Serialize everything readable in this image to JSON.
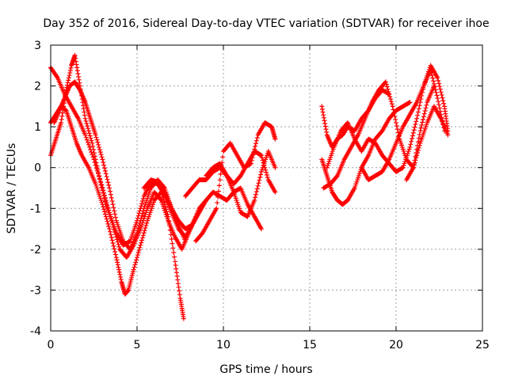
{
  "chart_data": {
    "type": "scatter",
    "title": "Day 352 of 2016, Sidereal Day-to-day VTEC variation (SDTVAR) for receiver ihoe",
    "xlabel": "GPS time / hours",
    "ylabel": "SDTVAR / TECUs",
    "xlim": [
      0,
      25
    ],
    "ylim": [
      -4,
      3
    ],
    "x_ticks": [
      "0",
      "5",
      "10",
      "15",
      "20",
      "25"
    ],
    "y_ticks": [
      "-4",
      "-3",
      "-2",
      "-1",
      "0",
      "1",
      "2",
      "3"
    ],
    "grid": true,
    "marker": "+",
    "marker_color": "#ff0000",
    "series": [
      {
        "x": [
          0.0,
          0.4,
          0.8,
          1.2,
          1.6,
          2.0,
          2.5,
          3.0,
          3.4,
          3.8,
          4.2,
          4.6,
          5.0,
          5.4,
          5.8,
          6.2,
          6.6,
          7.0,
          7.4,
          7.8,
          8.2,
          8.6,
          9.0
        ],
        "y": [
          2.45,
          2.2,
          1.8,
          1.5,
          1.2,
          0.8,
          0.2,
          -0.5,
          -1.1,
          -1.6,
          -1.9,
          -1.8,
          -1.3,
          -0.7,
          -0.35,
          -0.4,
          -0.7,
          -1.1,
          -1.5,
          -1.7,
          -1.4,
          -1.0,
          -0.8
        ]
      },
      {
        "x": [
          0.0,
          0.3,
          0.6,
          0.9,
          1.2,
          1.5,
          1.8,
          2.2,
          2.6,
          3.0,
          3.4,
          3.8,
          4.1,
          4.3,
          4.5,
          4.8,
          5.2,
          5.6,
          6.0,
          6.4,
          6.8,
          7.2,
          7.5,
          7.7
        ],
        "y": [
          1.1,
          1.3,
          1.5,
          1.4,
          1.0,
          0.6,
          0.3,
          0.0,
          -0.4,
          -0.9,
          -1.5,
          -2.2,
          -2.8,
          -3.1,
          -3.0,
          -2.5,
          -1.9,
          -1.3,
          -0.8,
          -0.6,
          -1.2,
          -2.3,
          -3.2,
          -3.7
        ]
      },
      {
        "x": [
          0.0,
          0.3,
          0.6,
          0.9,
          1.2,
          1.4,
          1.7,
          2.0,
          2.4,
          2.8,
          3.2,
          3.6,
          4.0,
          4.4,
          4.8,
          5.2,
          5.6,
          6.0,
          6.4,
          6.8,
          7.2,
          7.6,
          8.0,
          8.4
        ],
        "y": [
          0.3,
          0.7,
          1.1,
          1.9,
          2.5,
          2.75,
          2.0,
          1.2,
          0.6,
          -0.2,
          -0.9,
          -1.4,
          -2.0,
          -2.2,
          -1.9,
          -1.5,
          -1.0,
          -0.6,
          -0.8,
          -1.3,
          -1.7,
          -2.0,
          -1.6,
          -1.2
        ]
      },
      {
        "x": [
          0.2,
          0.5,
          0.8,
          1.1,
          1.4,
          1.7,
          2.0,
          2.3,
          2.6,
          3.0,
          3.4,
          3.8,
          4.2,
          4.6,
          5.0,
          5.4,
          5.8,
          6.2,
          6.6,
          7.0,
          7.4,
          7.8
        ],
        "y": [
          1.1,
          1.4,
          1.7,
          2.0,
          2.1,
          1.9,
          1.6,
          1.2,
          0.8,
          0.2,
          -0.5,
          -1.3,
          -1.8,
          -2.0,
          -1.6,
          -1.0,
          -0.5,
          -0.3,
          -0.5,
          -1.0,
          -1.4,
          -1.8
        ]
      },
      {
        "x": [
          5.4,
          5.8,
          6.2,
          6.6,
          7.0,
          7.4,
          7.8,
          8.2,
          8.6,
          9.0,
          9.4,
          9.8,
          10.2,
          10.6,
          11.0,
          11.4,
          11.8,
          12.2
        ],
        "y": [
          -0.5,
          -0.3,
          -0.35,
          -0.6,
          -1.0,
          -1.3,
          -1.5,
          -1.4,
          -1.1,
          -0.8,
          -0.6,
          -0.7,
          -0.8,
          -0.6,
          -0.5,
          -0.9,
          -1.2,
          -1.5
        ]
      },
      {
        "x": [
          7.8,
          8.2,
          8.6,
          9.0,
          9.4,
          9.8,
          10.2,
          10.6,
          11.0,
          11.4,
          11.8,
          12.2,
          12.6,
          13.0
        ],
        "y": [
          -0.7,
          -0.5,
          -0.3,
          -0.3,
          -0.1,
          0.0,
          -0.2,
          -0.4,
          -0.2,
          0.1,
          0.4,
          0.3,
          -0.3,
          -0.6
        ]
      },
      {
        "x": [
          8.4,
          8.8,
          9.2,
          9.6,
          10.0,
          10.4,
          10.8,
          11.2,
          11.6,
          12.0,
          12.4,
          12.8,
          13.0
        ],
        "y": [
          -1.8,
          -1.6,
          -1.3,
          -1.0,
          0.4,
          0.6,
          0.3,
          0.0,
          0.1,
          0.8,
          1.1,
          1.0,
          0.7
        ]
      },
      {
        "x": [
          9.0,
          9.4,
          9.8,
          10.2,
          10.6,
          11.0,
          11.4,
          11.8,
          12.2,
          12.6,
          13.0
        ],
        "y": [
          -0.2,
          0.0,
          0.1,
          -0.2,
          -0.6,
          -1.1,
          -1.2,
          -0.8,
          -0.1,
          0.4,
          0.0
        ]
      },
      {
        "x": [
          15.7,
          16.0,
          16.3,
          16.6,
          16.9,
          17.2,
          17.6,
          18.0,
          18.4,
          18.8,
          19.2,
          19.6
        ],
        "y": [
          1.5,
          0.8,
          0.5,
          0.7,
          0.8,
          1.0,
          0.9,
          1.2,
          1.4,
          1.7,
          1.9,
          1.8
        ]
      },
      {
        "x": [
          15.7,
          16.0,
          16.3,
          16.6,
          16.9,
          17.2,
          17.6,
          18.0,
          18.4,
          18.8,
          19.2,
          19.6,
          20.0,
          20.4,
          20.8
        ],
        "y": [
          0.2,
          -0.2,
          -0.6,
          -0.8,
          -0.9,
          -0.8,
          -0.5,
          0.0,
          0.3,
          0.7,
          0.9,
          1.2,
          1.4,
          1.5,
          1.6
        ]
      },
      {
        "x": [
          15.8,
          16.2,
          16.6,
          17.0,
          17.4,
          17.8,
          18.2,
          18.6,
          19.0,
          19.4,
          19.8,
          20.2,
          20.6,
          21.0,
          21.4,
          21.8,
          22.2
        ],
        "y": [
          -0.5,
          -0.4,
          -0.2,
          0.2,
          0.5,
          0.8,
          1.2,
          1.6,
          1.9,
          2.1,
          1.5,
          0.7,
          0.2,
          0.0,
          0.9,
          1.6,
          2.0
        ]
      },
      {
        "x": [
          16.0,
          16.4,
          16.8,
          17.2,
          17.6,
          18.0,
          18.4,
          18.8,
          19.2,
          19.6,
          20.0,
          20.4,
          20.8,
          21.2,
          21.6,
          22.0,
          22.4,
          22.8
        ],
        "y": [
          0.0,
          0.5,
          0.9,
          1.1,
          0.7,
          0.4,
          0.7,
          0.6,
          0.3,
          0.1,
          -0.1,
          0.0,
          0.5,
          1.2,
          2.0,
          2.4,
          1.7,
          0.9
        ]
      },
      {
        "x": [
          18.0,
          18.4,
          18.8,
          19.2,
          19.6,
          20.0,
          20.4,
          20.8,
          21.2,
          21.6,
          22.0,
          22.4,
          22.8,
          23.0
        ],
        "y": [
          0.0,
          -0.3,
          -0.2,
          -0.1,
          0.2,
          0.6,
          1.0,
          1.3,
          1.6,
          2.0,
          2.5,
          2.2,
          1.5,
          0.9
        ]
      },
      {
        "x": [
          20.6,
          21.0,
          21.4,
          21.8,
          22.2,
          22.6,
          23.0
        ],
        "y": [
          -0.3,
          0.0,
          0.6,
          1.1,
          1.5,
          1.2,
          0.8
        ]
      }
    ]
  }
}
